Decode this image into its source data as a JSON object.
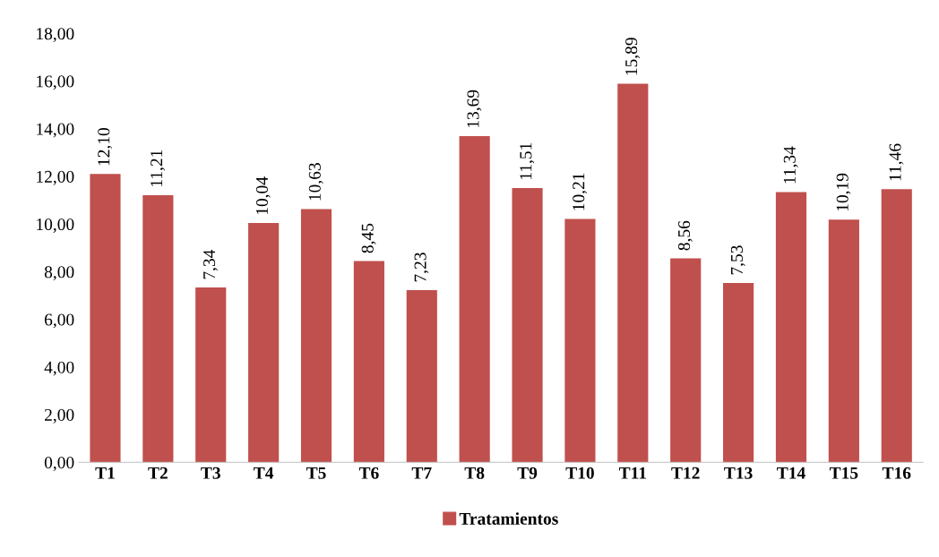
{
  "chart_data": {
    "type": "bar",
    "categories": [
      "T1",
      "T2",
      "T3",
      "T4",
      "T5",
      "T6",
      "T7",
      "T8",
      "T9",
      "T10",
      "T11",
      "T12",
      "T13",
      "T14",
      "T15",
      "T16"
    ],
    "series": [
      {
        "name": "Tratamientos",
        "color": "#c0504d",
        "values": [
          12.1,
          11.21,
          7.34,
          10.04,
          10.63,
          8.45,
          7.23,
          13.69,
          11.51,
          10.21,
          15.89,
          8.56,
          7.53,
          11.34,
          10.19,
          11.46
        ],
        "value_labels": [
          "12,10",
          "11,21",
          "7,34",
          "10,04",
          "10,63",
          "8,45",
          "7,23",
          "13,69",
          "11,51",
          "10,21",
          "15,89",
          "8,56",
          "7,53",
          "11,34",
          "10,19",
          "11,46"
        ]
      }
    ],
    "ylim": [
      0,
      18
    ],
    "yticks": [
      {
        "value": 0,
        "label": "0,00"
      },
      {
        "value": 2,
        "label": "2,00"
      },
      {
        "value": 4,
        "label": "4,00"
      },
      {
        "value": 6,
        "label": "6,00"
      },
      {
        "value": 8,
        "label": "8,00"
      },
      {
        "value": 10,
        "label": "10,00"
      },
      {
        "value": 12,
        "label": "12,00"
      },
      {
        "value": 14,
        "label": "14,00"
      },
      {
        "value": 16,
        "label": "16,00"
      },
      {
        "value": 18,
        "label": "18,00"
      }
    ],
    "grid": false,
    "legend": "bottom"
  }
}
